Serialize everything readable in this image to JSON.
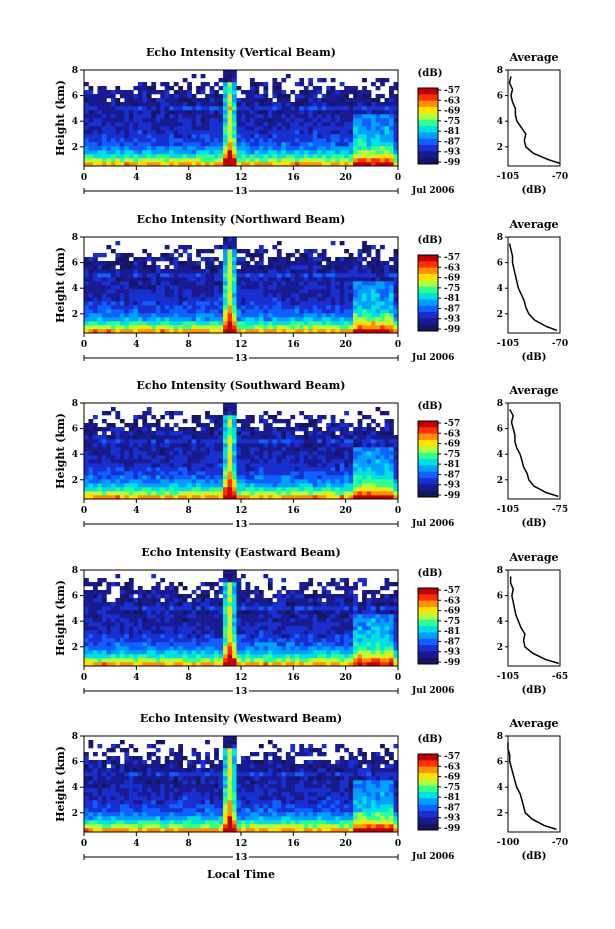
{
  "figure": {
    "xlabel": "Local Time",
    "colorbar_unit": "(dB)",
    "colorbar_ticks": [
      "-57",
      "-63",
      "-69",
      "-75",
      "-81",
      "-87",
      "-93",
      "-99"
    ],
    "colorbar_colors": [
      "#c00000",
      "#ff3000",
      "#ff9000",
      "#ffe000",
      "#b0ff40",
      "#30ff90",
      "#00e0e0",
      "#00a0ff",
      "#1060ff",
      "#1830d0",
      "#1a1a90",
      "#151560"
    ],
    "date_label": "Jul 2006",
    "day_label": "13",
    "x_ticks": [
      "0",
      "4",
      "8",
      "12",
      "16",
      "20",
      "0"
    ],
    "y_ticks": [
      "2",
      "4",
      "6",
      "8"
    ],
    "ylabel": "Height (km)",
    "avg_title": "Average",
    "avg_xlabel": "(dB)"
  },
  "chart_data": [
    {
      "type": "heatmap",
      "title": "Echo Intensity (Vertical Beam)",
      "ylabel": "Height (km)",
      "x_range_hours": [
        0,
        24
      ],
      "ylim_km": [
        0.5,
        8
      ],
      "avg_xlim": [
        -105,
        -70
      ],
      "avg_ticks": [
        "-105",
        "-70"
      ],
      "average_profile": {
        "height_km": [
          0.7,
          1.0,
          1.5,
          2.0,
          2.5,
          3.0,
          3.5,
          4.0,
          4.5,
          5.0,
          5.5,
          6.0,
          6.5,
          7.0,
          7.5
        ],
        "value_db": [
          -70,
          -78,
          -88,
          -93,
          -94,
          -93,
          -96,
          -99,
          -100,
          -100,
          -102,
          -103,
          -102,
          -104,
          -103
        ]
      }
    },
    {
      "type": "heatmap",
      "title": "Echo Intensity (Northward Beam)",
      "ylabel": "Height (km)",
      "x_range_hours": [
        0,
        24
      ],
      "ylim_km": [
        0.5,
        8
      ],
      "avg_xlim": [
        -105,
        -70
      ],
      "avg_ticks": [
        "-105",
        "-70"
      ],
      "average_profile": {
        "height_km": [
          0.7,
          1.0,
          1.5,
          2.0,
          2.5,
          3.0,
          3.5,
          4.0,
          4.5,
          5.0,
          5.5,
          6.0,
          6.5,
          7.0,
          7.5
        ],
        "value_db": [
          -72,
          -79,
          -87,
          -91,
          -93,
          -94,
          -96,
          -98,
          -99,
          -100,
          -101,
          -102,
          -102,
          -103,
          -104
        ]
      }
    },
    {
      "type": "heatmap",
      "title": "Echo Intensity (Southward Beam)",
      "ylabel": "Height (km)",
      "x_range_hours": [
        0,
        24
      ],
      "ylim_km": [
        0.5,
        8
      ],
      "avg_xlim": [
        -105,
        -75
      ],
      "avg_ticks": [
        "-105",
        "-75"
      ],
      "average_profile": {
        "height_km": [
          0.7,
          1.0,
          1.5,
          2.0,
          2.5,
          3.0,
          3.5,
          4.0,
          4.5,
          5.0,
          5.5,
          6.0,
          6.5,
          7.0,
          7.5
        ],
        "value_db": [
          -76,
          -83,
          -90,
          -93,
          -94,
          -96,
          -97,
          -98,
          -100,
          -101,
          -101,
          -102,
          -103,
          -102,
          -104
        ]
      }
    },
    {
      "type": "heatmap",
      "title": "Echo Intensity (Eastward Beam)",
      "ylabel": "Height (km)",
      "x_range_hours": [
        0,
        24
      ],
      "ylim_km": [
        0.5,
        8
      ],
      "avg_xlim": [
        -105,
        -65
      ],
      "avg_ticks": [
        "-105",
        "-65"
      ],
      "average_profile": {
        "height_km": [
          0.7,
          1.0,
          1.5,
          2.0,
          2.5,
          3.0,
          3.5,
          4.0,
          4.5,
          5.0,
          5.5,
          6.0,
          6.5,
          7.0,
          7.5
        ],
        "value_db": [
          -66,
          -76,
          -86,
          -92,
          -93,
          -92,
          -95,
          -97,
          -99,
          -100,
          -101,
          -102,
          -101,
          -103,
          -103
        ]
      }
    },
    {
      "type": "heatmap",
      "title": "Echo Intensity (Westward Beam)",
      "ylabel": "Height (km)",
      "x_range_hours": [
        0,
        24
      ],
      "ylim_km": [
        0.5,
        8
      ],
      "avg_xlim": [
        -100,
        -70
      ],
      "avg_ticks": [
        "-100",
        "-70"
      ],
      "average_profile": {
        "height_km": [
          0.7,
          1.0,
          1.5,
          2.0,
          2.5,
          3.0,
          3.5,
          4.0,
          4.5,
          5.0,
          5.5,
          6.0,
          6.5,
          7.0,
          7.5
        ],
        "value_db": [
          -72,
          -79,
          -86,
          -90,
          -91,
          -92,
          -93,
          -95,
          -96,
          -97,
          -98,
          -99,
          -99,
          -100,
          -100
        ]
      }
    }
  ]
}
